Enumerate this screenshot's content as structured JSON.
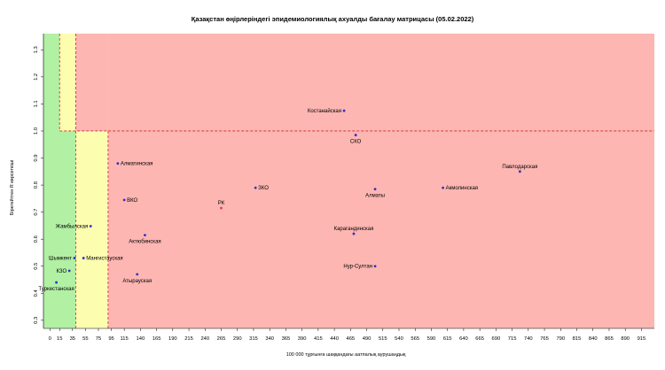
{
  "chart_data": {
    "type": "scatter",
    "title": "Қазақстан өңірлеріндегі эпидемиологиялық ахуалды бағалау матрицасы  (05.02.2022)",
    "xlabel": "100 000 тұрғынға шаққандағы аатпалық аурушаңдық",
    "ylabel": "Бірегейтген R көрсеткіші",
    "xlim": [
      -10,
      935
    ],
    "ylim": [
      0.27,
      1.36
    ],
    "xticks": [
      0,
      15,
      35,
      55,
      75,
      95,
      115,
      140,
      165,
      190,
      215,
      240,
      265,
      290,
      315,
      340,
      365,
      390,
      415,
      440,
      465,
      490,
      515,
      540,
      565,
      590,
      615,
      640,
      665,
      690,
      715,
      740,
      765,
      790,
      815,
      840,
      865,
      890,
      915
    ],
    "yticks": [
      0.3,
      0.4,
      0.5,
      0.6,
      0.7,
      0.8,
      0.9,
      1.0,
      1.1,
      1.2,
      1.3
    ],
    "zones": {
      "green": {
        "color": "#b2f0a4",
        "x": [
          -10,
          40
        ]
      },
      "yellow": {
        "color": "#fdfdb0",
        "x": [
          40,
          90
        ]
      },
      "red": {
        "color": "#fdb6b2",
        "x_from": 90
      },
      "yellow_upper_band": {
        "x": [
          15,
          40
        ],
        "y_from": 1.0
      },
      "line_color": "#cc2b2b"
    },
    "reference_lines": {
      "y": 1.0,
      "x": [
        40,
        90
      ]
    },
    "points": [
      {
        "name": "Костанайская",
        "x": 455,
        "y": 1.075,
        "color": "#3030c8",
        "label_pos": "left"
      },
      {
        "name": "СКО",
        "x": 473,
        "y": 0.985,
        "color": "#3030c8",
        "label_pos": "below"
      },
      {
        "name": "Павлодарская",
        "x": 727,
        "y": 0.85,
        "color": "#3030c8",
        "label_pos": "above"
      },
      {
        "name": "Алматинская",
        "x": 105,
        "y": 0.88,
        "color": "#3030c8",
        "label_pos": "right"
      },
      {
        "name": "ЗКО",
        "x": 318,
        "y": 0.79,
        "color": "#3030c8",
        "label_pos": "right"
      },
      {
        "name": "Алматы",
        "x": 503,
        "y": 0.785,
        "color": "#3030c8",
        "label_pos": "below"
      },
      {
        "name": "Акмолинская",
        "x": 608,
        "y": 0.79,
        "color": "#3030c8",
        "label_pos": "right"
      },
      {
        "name": "ВКО",
        "x": 115,
        "y": 0.745,
        "color": "#3030c8",
        "label_pos": "right"
      },
      {
        "name": "РК",
        "x": 265,
        "y": 0.715,
        "color": "#e04040",
        "label_pos": "above",
        "label_color": "#e04040"
      },
      {
        "name": "Жамбылская",
        "x": 63,
        "y": 0.648,
        "color": "#3030c8",
        "label_pos": "left"
      },
      {
        "name": "Карагандинская",
        "x": 470,
        "y": 0.62,
        "color": "#3030c8",
        "label_pos": "above"
      },
      {
        "name": "Актюбинская",
        "x": 147,
        "y": 0.615,
        "color": "#3030c8",
        "label_pos": "below"
      },
      {
        "name": "Шымкент",
        "x": 38,
        "y": 0.53,
        "color": "#3030c8",
        "label_pos": "left"
      },
      {
        "name": "Мангистауская",
        "x": 52,
        "y": 0.53,
        "color": "#3030c8",
        "label_pos": "right"
      },
      {
        "name": "Нур-Султан",
        "x": 503,
        "y": 0.5,
        "color": "#3030c8",
        "label_pos": "left"
      },
      {
        "name": "КЗО",
        "x": 30,
        "y": 0.483,
        "color": "#3030c8",
        "label_pos": "left"
      },
      {
        "name": "Атырауская",
        "x": 135,
        "y": 0.47,
        "color": "#3030c8",
        "label_pos": "below"
      },
      {
        "name": "Туркестанская",
        "x": 10,
        "y": 0.44,
        "color": "#3030c8",
        "label_pos": "below"
      }
    ]
  }
}
